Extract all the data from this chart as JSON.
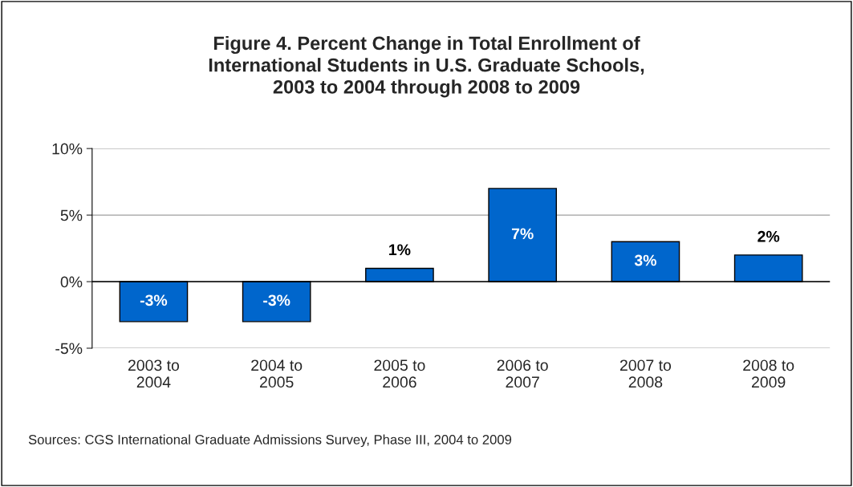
{
  "chart_data": {
    "type": "bar",
    "title": "Figure 4. Percent Change in Total Enrollment of\nInternational Students in U.S. Graduate Schools,\n2003 to 2004 through 2008 to 2009",
    "categories": [
      "2003 to\n2004",
      "2004 to\n2005",
      "2005 to\n2006",
      "2006 to\n2007",
      "2007 to\n2008",
      "2008 to\n2009"
    ],
    "values": [
      -3,
      -3,
      1,
      7,
      3,
      2
    ],
    "value_labels": [
      "-3%",
      "-3%",
      "1%",
      "7%",
      "3%",
      "2%"
    ],
    "color": "#0066cc",
    "ylim": [
      -5,
      10
    ],
    "yticks": [
      {
        "value": -5,
        "label": "-5%"
      },
      {
        "value": 0,
        "label": "0%"
      },
      {
        "value": 5,
        "label": "5%"
      },
      {
        "value": 10,
        "label": "10%"
      }
    ],
    "grid": "y",
    "annotations": [
      "Sources: CGS International Graduate Admissions Survey, Phase III, 2004 to 2009"
    ]
  }
}
